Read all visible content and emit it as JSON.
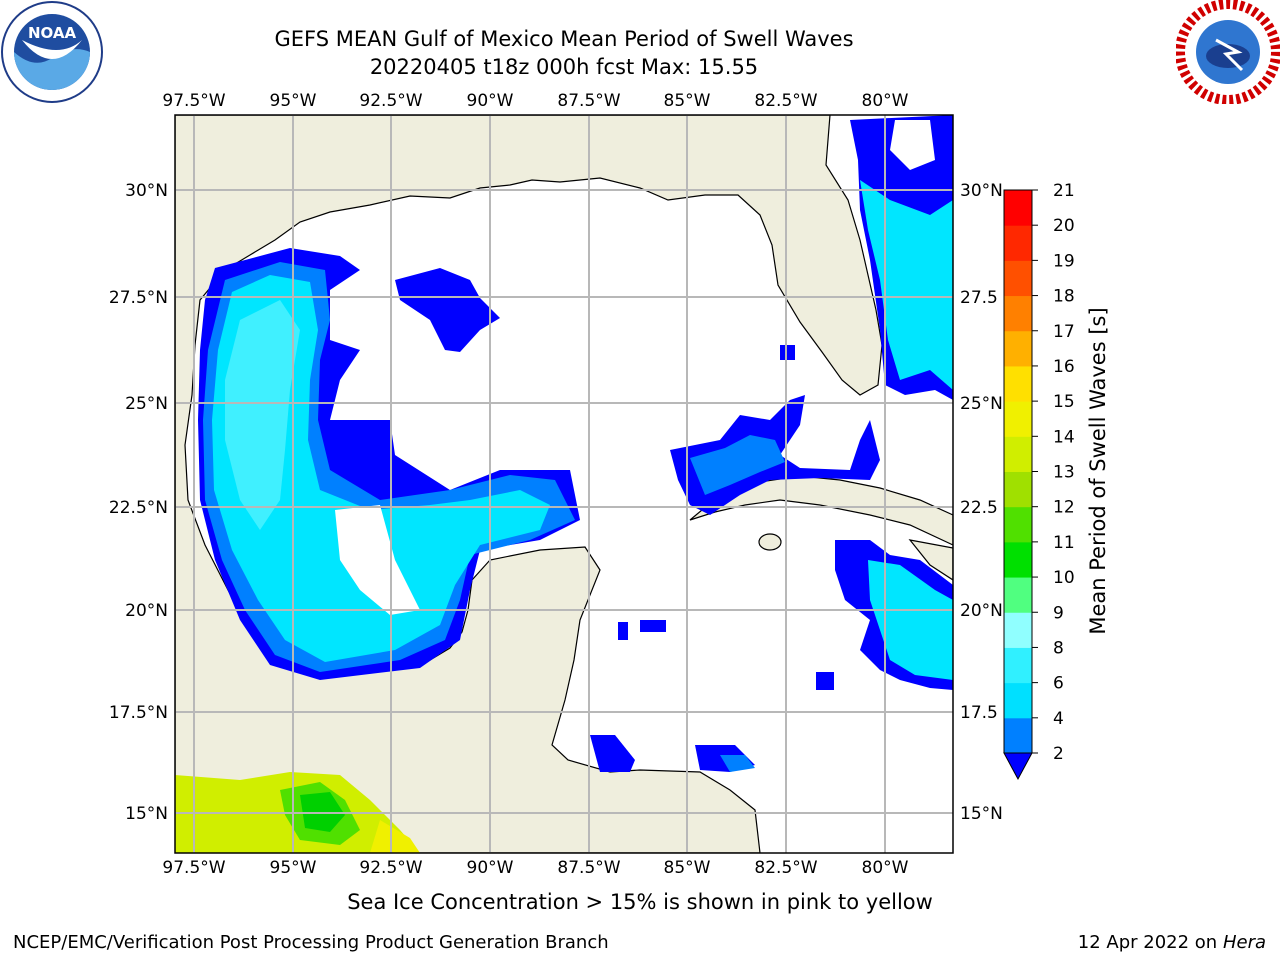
{
  "title": {
    "line1": "GEFS MEAN Gulf of Mexico Mean Period of Swell Waves",
    "line2": "20220405 t18z 000h fcst   Max: 15.55"
  },
  "map": {
    "lon_labels": [
      "97.5°W",
      "95°W",
      "92.5°W",
      "90°W",
      "87.5°W",
      "85°W",
      "82.5°W",
      "80°W"
    ],
    "lat_labels_left": [
      "30°N",
      "27.5°N",
      "25°N",
      "22.5°N",
      "20°N",
      "17.5°N",
      "15°N"
    ],
    "lat_labels_right": [
      "30°N",
      "27.5",
      "25°N",
      "22.5",
      "20°N",
      "17.5",
      "15°N"
    ],
    "lon_range": [
      -98,
      -78.5
    ],
    "lat_range": [
      14,
      31.5
    ],
    "grid": true,
    "colors": {
      "land": "#efeedd",
      "ocean_empty": "#ffffff",
      "grid": "#b8b8b8",
      "coast": "#000000"
    }
  },
  "colorbar": {
    "label": "Mean Period of Swell Waves [s]",
    "ticks": [
      "2",
      "4",
      "6",
      "8",
      "9",
      "10",
      "11",
      "12",
      "13",
      "14",
      "15",
      "16",
      "17",
      "18",
      "19",
      "20",
      "21"
    ],
    "colors": [
      "#0000ff",
      "#0080ff",
      "#00e0ff",
      "#30f0ff",
      "#90ffff",
      "#50ff80",
      "#00e000",
      "#50e000",
      "#a0e000",
      "#d0ee00",
      "#f0f000",
      "#ffe000",
      "#ffb000",
      "#ff8000",
      "#ff5000",
      "#ff2800",
      "#ff0000"
    ],
    "extend": "min"
  },
  "footer": {
    "note": "Sea Ice Concentration > 15% is shown in pink to yellow",
    "credit_left": "NCEP/EMC/Verification Post Processing Product Generation Branch",
    "credit_right_date": "12 Apr 2022 on ",
    "credit_right_host": "Hera"
  },
  "logos": {
    "left": "noaa-logo",
    "right": "nws-logo"
  }
}
